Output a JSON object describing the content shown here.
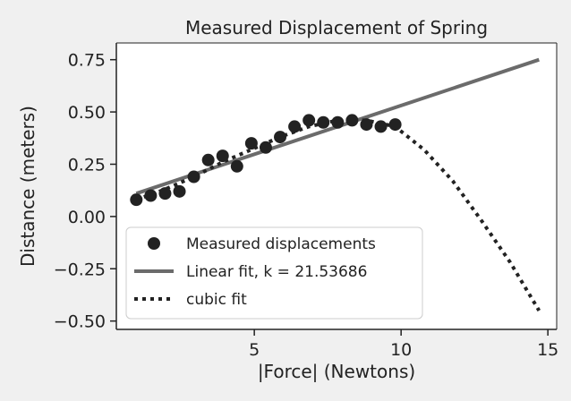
{
  "chart_data": {
    "type": "scatter",
    "title": "Measured Displacement of Spring",
    "xlabel": "|Force| (Newtons)",
    "ylabel": "Distance (meters)",
    "xlim": [
      0.3,
      15.3
    ],
    "ylim": [
      -0.54,
      0.83
    ],
    "xticks": [
      5,
      10,
      15
    ],
    "yticks": [
      0.75,
      0.5,
      0.25,
      0.0,
      -0.25,
      -0.5
    ],
    "ytick_labels": [
      "0.75",
      "0.50",
      "0.25",
      "0.00",
      "−0.25",
      "−0.50"
    ],
    "grid": false,
    "legend_position": "lower-left",
    "colors": {
      "points": "#222222",
      "linear": "#6b6b6b",
      "cubic": "#222222",
      "background": "#f0f0f0",
      "plot_background": "#ffffff"
    },
    "series": [
      {
        "name": "Measured displacements",
        "kind": "scatter",
        "x": [
          0.98,
          1.47,
          1.96,
          2.45,
          2.94,
          3.43,
          3.92,
          4.41,
          4.9,
          5.39,
          5.88,
          6.37,
          6.86,
          7.35,
          7.84,
          8.33,
          8.82,
          9.31,
          9.8
        ],
        "y": [
          0.08,
          0.1,
          0.11,
          0.12,
          0.19,
          0.27,
          0.29,
          0.24,
          0.35,
          0.33,
          0.38,
          0.43,
          0.46,
          0.45,
          0.45,
          0.46,
          0.44,
          0.43,
          0.44
        ]
      },
      {
        "name": "Linear fit, k = 21.53686",
        "kind": "line",
        "x": [
          0.98,
          14.7
        ],
        "y": [
          0.11,
          0.75
        ]
      },
      {
        "name": "cubic fit",
        "kind": "dotted",
        "x": [
          0.98,
          1.96,
          2.94,
          3.92,
          4.9,
          5.88,
          6.86,
          7.84,
          8.82,
          9.8,
          10.78,
          11.76,
          12.74,
          13.72,
          14.7
        ],
        "y": [
          0.08,
          0.13,
          0.19,
          0.26,
          0.32,
          0.38,
          0.43,
          0.46,
          0.46,
          0.43,
          0.32,
          0.17,
          -0.02,
          -0.22,
          -0.45
        ]
      }
    ]
  }
}
